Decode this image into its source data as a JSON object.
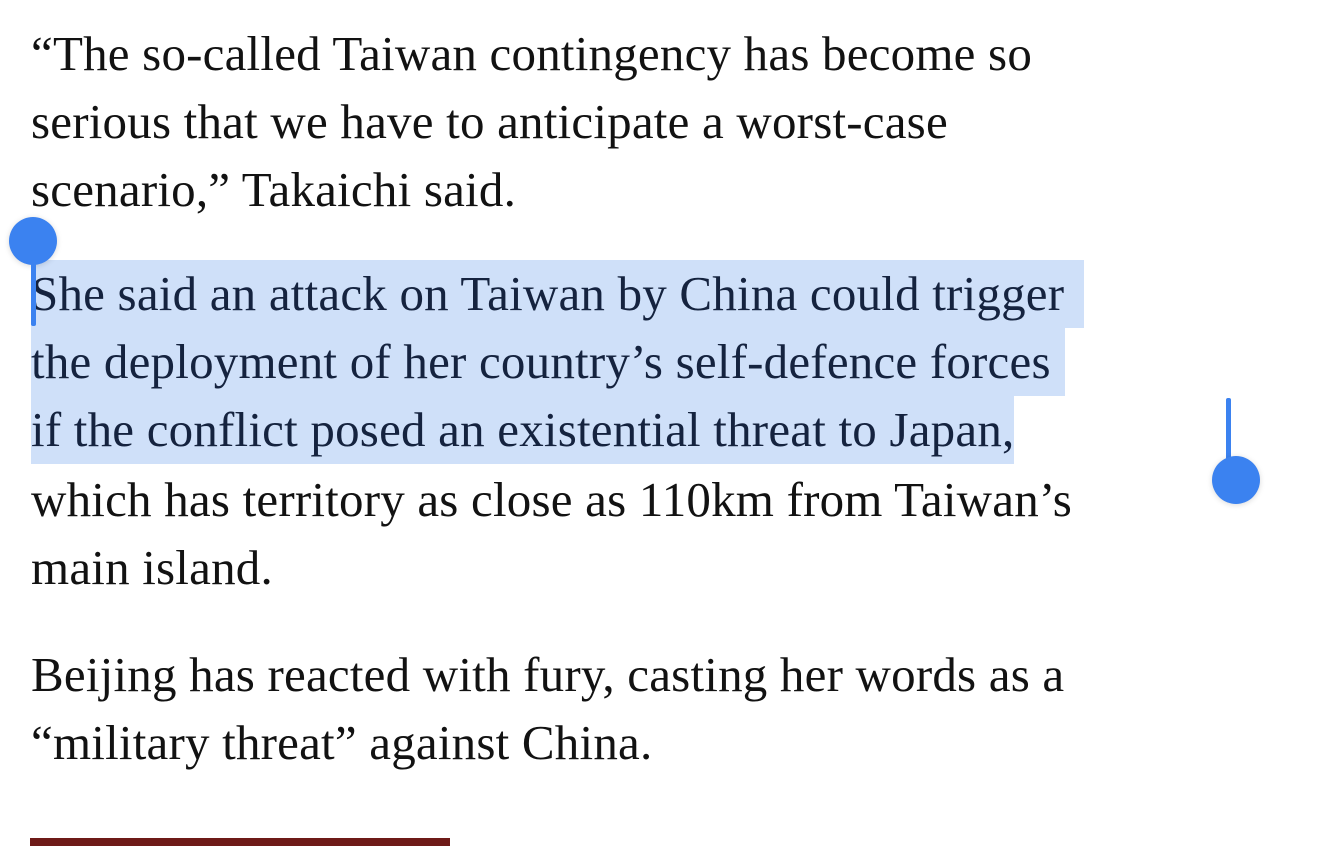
{
  "article": {
    "paragraph1": {
      "lines": [
        "“The so-called Taiwan contingency has become so",
        "serious that we have to anticipate a worst-case",
        "scenario,” Takaichi said."
      ]
    },
    "paragraph2": {
      "selected_lines": [
        "She said an attack on Taiwan by China could trigger",
        "the deployment of her country’s self-defence forces",
        "if the conflict posed an existential threat to Japan,"
      ],
      "lines": [
        "which has territory as close as 110km from Taiwan’s",
        "main island."
      ]
    },
    "paragraph3": {
      "lines": [
        "Beijing has reacted with fury, casting her words as a",
        "“military threat” against China."
      ]
    }
  },
  "colors": {
    "selection": "#cfe0f9",
    "handle": "#3b82f0",
    "accent_bar": "#6e1a18"
  }
}
